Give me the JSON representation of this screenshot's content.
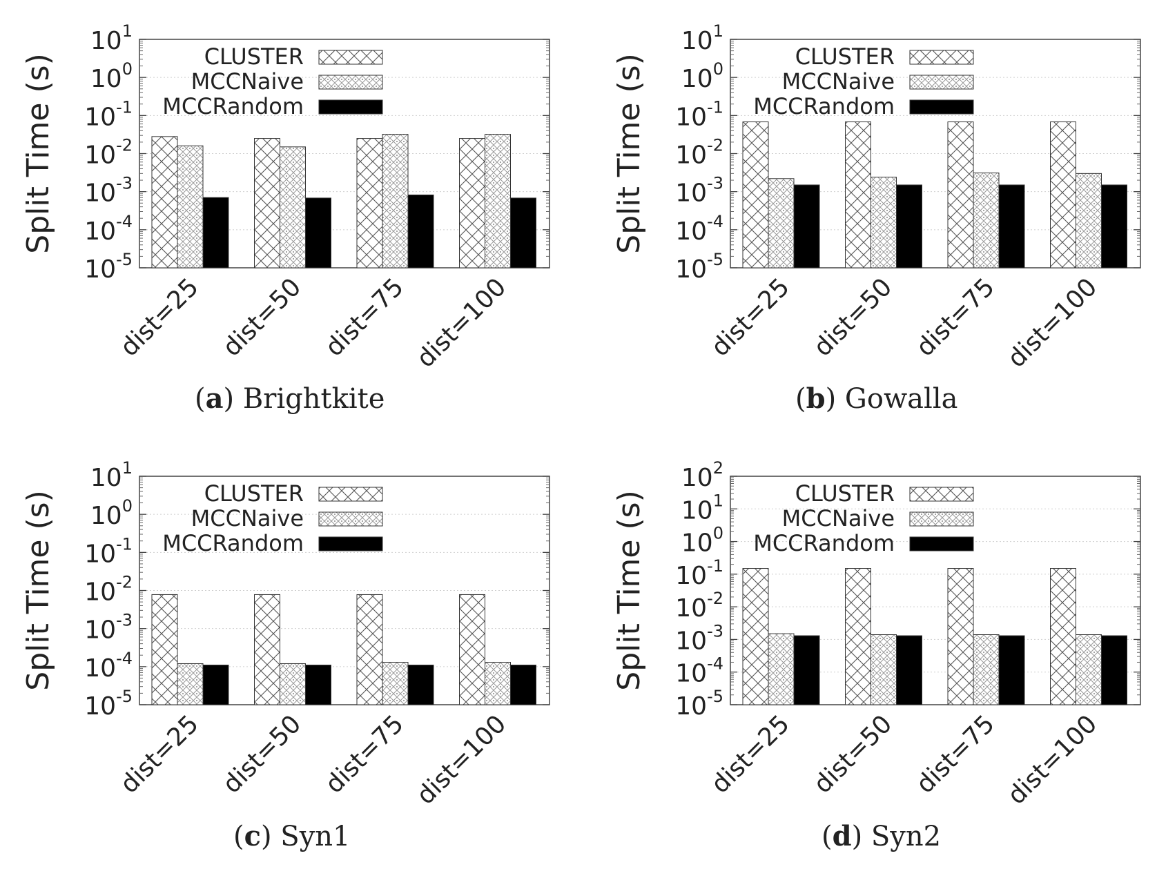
{
  "legend_colors": {
    "CLUSTER": "#ffffff",
    "MCCNaive": "#ffffff",
    "MCCRandom": "#000000"
  },
  "chart_data": [
    {
      "type": "bar",
      "panel_label": "a",
      "caption": "Brightkite",
      "ylabel": "Split Time (s)",
      "yscale": "log",
      "ylim": [
        1e-05,
        10
      ],
      "yticks": [
        {
          "base": "10",
          "exp": "-5"
        },
        {
          "base": "10",
          "exp": "-4"
        },
        {
          "base": "10",
          "exp": "-3"
        },
        {
          "base": "10",
          "exp": "-2"
        },
        {
          "base": "10",
          "exp": "-1"
        },
        {
          "base": "10",
          "exp": "0"
        },
        {
          "base": "10",
          "exp": "1"
        }
      ],
      "categories": [
        "dist=25",
        "dist=50",
        "dist=75",
        "dist=100"
      ],
      "legend_position": "top-left",
      "grid": true,
      "series": [
        {
          "name": "CLUSTER",
          "pattern": "crosshatch",
          "values": [
            0.028,
            0.025,
            0.025,
            0.025
          ]
        },
        {
          "name": "MCCNaive",
          "pattern": "dots",
          "values": [
            0.016,
            0.015,
            0.032,
            0.032
          ]
        },
        {
          "name": "MCCRandom",
          "pattern": "solid",
          "values": [
            0.0007,
            0.00068,
            0.00082,
            0.00068
          ]
        }
      ]
    },
    {
      "type": "bar",
      "panel_label": "b",
      "caption": "Gowalla",
      "ylabel": "Split Time (s)",
      "yscale": "log",
      "ylim": [
        1e-05,
        10
      ],
      "yticks": [
        {
          "base": "10",
          "exp": "-5"
        },
        {
          "base": "10",
          "exp": "-4"
        },
        {
          "base": "10",
          "exp": "-3"
        },
        {
          "base": "10",
          "exp": "-2"
        },
        {
          "base": "10",
          "exp": "-1"
        },
        {
          "base": "10",
          "exp": "0"
        },
        {
          "base": "10",
          "exp": "1"
        }
      ],
      "categories": [
        "dist=25",
        "dist=50",
        "dist=75",
        "dist=100"
      ],
      "legend_position": "top-left",
      "grid": true,
      "series": [
        {
          "name": "CLUSTER",
          "pattern": "crosshatch",
          "values": [
            0.068,
            0.068,
            0.068,
            0.068
          ]
        },
        {
          "name": "MCCNaive",
          "pattern": "dots",
          "values": [
            0.0022,
            0.0024,
            0.0031,
            0.003
          ]
        },
        {
          "name": "MCCRandom",
          "pattern": "solid",
          "values": [
            0.0015,
            0.0015,
            0.0015,
            0.0015
          ]
        }
      ]
    },
    {
      "type": "bar",
      "panel_label": "c",
      "caption": "Syn1",
      "ylabel": "Split Time (s)",
      "yscale": "log",
      "ylim": [
        1e-05,
        10
      ],
      "yticks": [
        {
          "base": "10",
          "exp": "-5"
        },
        {
          "base": "10",
          "exp": "-4"
        },
        {
          "base": "10",
          "exp": "-3"
        },
        {
          "base": "10",
          "exp": "-2"
        },
        {
          "base": "10",
          "exp": "-1"
        },
        {
          "base": "10",
          "exp": "0"
        },
        {
          "base": "10",
          "exp": "1"
        }
      ],
      "categories": [
        "dist=25",
        "dist=50",
        "dist=75",
        "dist=100"
      ],
      "legend_position": "top-left",
      "grid": true,
      "series": [
        {
          "name": "CLUSTER",
          "pattern": "crosshatch",
          "values": [
            0.0078,
            0.0078,
            0.0078,
            0.0078
          ]
        },
        {
          "name": "MCCNaive",
          "pattern": "dots",
          "values": [
            0.00012,
            0.00012,
            0.00013,
            0.00013
          ]
        },
        {
          "name": "MCCRandom",
          "pattern": "solid",
          "values": [
            0.00011,
            0.00011,
            0.00011,
            0.00011
          ]
        }
      ]
    },
    {
      "type": "bar",
      "panel_label": "d",
      "caption": "Syn2",
      "ylabel": "Split Time (s)",
      "yscale": "log",
      "ylim": [
        1e-05,
        100
      ],
      "yticks": [
        {
          "base": "10",
          "exp": "-5"
        },
        {
          "base": "10",
          "exp": "-4"
        },
        {
          "base": "10",
          "exp": "-3"
        },
        {
          "base": "10",
          "exp": "-2"
        },
        {
          "base": "10",
          "exp": "-1"
        },
        {
          "base": "10",
          "exp": "0"
        },
        {
          "base": "10",
          "exp": "1"
        },
        {
          "base": "10",
          "exp": "2"
        }
      ],
      "categories": [
        "dist=25",
        "dist=50",
        "dist=75",
        "dist=100"
      ],
      "legend_position": "top-left",
      "grid": true,
      "series": [
        {
          "name": "CLUSTER",
          "pattern": "crosshatch",
          "values": [
            0.15,
            0.15,
            0.15,
            0.15
          ]
        },
        {
          "name": "MCCNaive",
          "pattern": "dots",
          "values": [
            0.0015,
            0.0014,
            0.0014,
            0.0014
          ]
        },
        {
          "name": "MCCRandom",
          "pattern": "solid",
          "values": [
            0.0013,
            0.0013,
            0.0013,
            0.0013
          ]
        }
      ]
    }
  ]
}
